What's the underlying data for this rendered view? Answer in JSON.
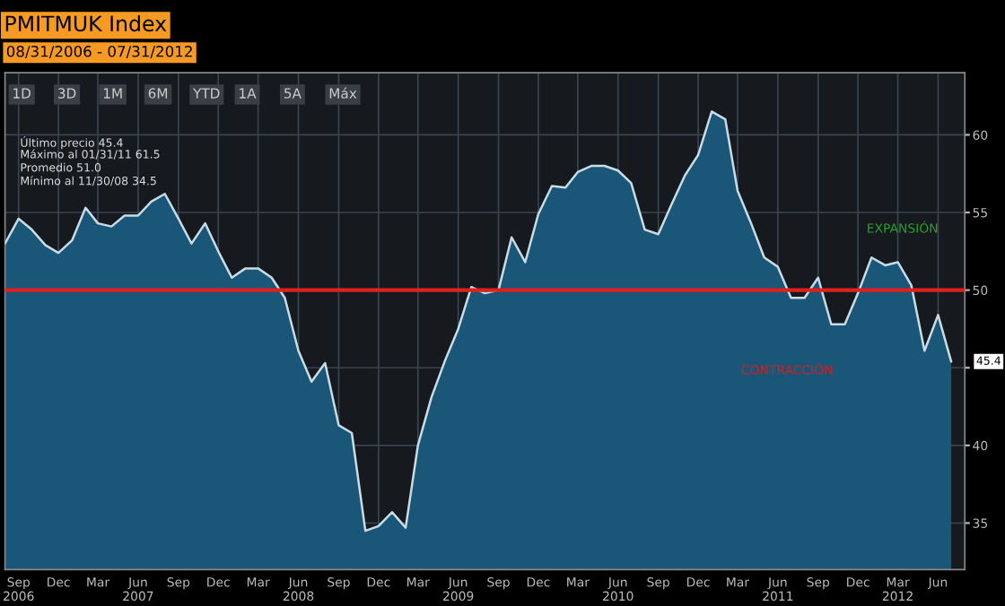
{
  "chart_data": {
    "type": "area",
    "title": "PMITMUK Index",
    "subtitle": "08/31/2006 - 07/31/2012",
    "x": [
      "2006-08",
      "2006-09",
      "2006-10",
      "2006-11",
      "2006-12",
      "2007-01",
      "2007-02",
      "2007-03",
      "2007-04",
      "2007-05",
      "2007-06",
      "2007-07",
      "2007-08",
      "2007-09",
      "2007-10",
      "2007-11",
      "2007-12",
      "2008-01",
      "2008-02",
      "2008-03",
      "2008-04",
      "2008-05",
      "2008-06",
      "2008-07",
      "2008-08",
      "2008-09",
      "2008-10",
      "2008-11",
      "2008-12",
      "2009-01",
      "2009-02",
      "2009-03",
      "2009-04",
      "2009-05",
      "2009-06",
      "2009-07",
      "2009-08",
      "2009-09",
      "2009-10",
      "2009-11",
      "2009-12",
      "2010-01",
      "2010-02",
      "2010-03",
      "2010-04",
      "2010-05",
      "2010-06",
      "2010-07",
      "2010-08",
      "2010-09",
      "2010-10",
      "2010-11",
      "2010-12",
      "2011-01",
      "2011-02",
      "2011-03",
      "2011-04",
      "2011-05",
      "2011-06",
      "2011-07",
      "2011-08",
      "2011-09",
      "2011-10",
      "2011-11",
      "2011-12",
      "2012-01",
      "2012-02",
      "2012-03",
      "2012-04",
      "2012-05",
      "2012-06",
      "2012-07"
    ],
    "series": [
      {
        "color": "#c9dce6",
        "values": [
          53.0,
          54.6,
          53.9,
          52.9,
          52.4,
          53.2,
          55.3,
          54.3,
          54.1,
          54.8,
          54.8,
          55.7,
          56.2,
          54.6,
          53.0,
          54.3,
          52.5,
          50.8,
          51.4,
          51.4,
          50.8,
          49.5,
          46.1,
          44.1,
          45.3,
          41.3,
          40.8,
          34.5,
          34.8,
          35.7,
          34.7,
          40.0,
          43.1,
          45.4,
          47.5,
          50.2,
          49.8,
          50.0,
          53.4,
          51.8,
          54.9,
          56.7,
          56.6,
          57.6,
          58.0,
          58.0,
          57.7,
          56.9,
          53.9,
          53.6,
          55.5,
          57.4,
          58.7,
          61.5,
          61.0,
          56.4,
          54.3,
          52.1,
          51.5,
          49.5,
          49.5,
          50.8,
          47.8,
          47.8,
          49.8,
          52.1,
          51.6,
          51.8,
          50.3,
          46.1,
          48.4,
          45.4
        ]
      }
    ],
    "xlim": [
      "2006-08",
      "2012-08"
    ],
    "xticks": [
      {
        "value": "2006-09",
        "label": "Sep\n2006"
      },
      {
        "value": "2006-12",
        "label": "Dec"
      },
      {
        "value": "2007-03",
        "label": "Mar"
      },
      {
        "value": "2007-06",
        "label": "Jun\n2007"
      },
      {
        "value": "2007-09",
        "label": "Sep"
      },
      {
        "value": "2007-12",
        "label": "Dec"
      },
      {
        "value": "2008-03",
        "label": "Mar"
      },
      {
        "value": "2008-06",
        "label": "Jun\n2008"
      },
      {
        "value": "2008-09",
        "label": "Sep"
      },
      {
        "value": "2008-12",
        "label": "Dec"
      },
      {
        "value": "2009-03",
        "label": "Mar"
      },
      {
        "value": "2009-06",
        "label": "Jun\n2009"
      },
      {
        "value": "2009-09",
        "label": "Sep"
      },
      {
        "value": "2009-12",
        "label": "Dec"
      },
      {
        "value": "2010-03",
        "label": "Mar"
      },
      {
        "value": "2010-06",
        "label": "Jun\n2010"
      },
      {
        "value": "2010-09",
        "label": "Sep"
      },
      {
        "value": "2010-12",
        "label": "Dec"
      },
      {
        "value": "2011-03",
        "label": "Mar"
      },
      {
        "value": "2011-06",
        "label": "Jun\n2011"
      },
      {
        "value": "2011-09",
        "label": "Sep"
      },
      {
        "value": "2011-12",
        "label": "Dec"
      },
      {
        "value": "2012-03",
        "label": "Mar\n2012"
      },
      {
        "value": "2012-06",
        "label": "Jun"
      }
    ],
    "ylim": [
      32,
      64
    ],
    "yticks": [
      35,
      40,
      {
        "value": 45,
        "label": null
      },
      50,
      55,
      60
    ],
    "grid": true,
    "ref_lines": [
      {
        "axis": "y",
        "value": 50,
        "color": "#e0201c"
      }
    ],
    "annotations": [
      "1D",
      "3D",
      "1M",
      "6M",
      "YTD",
      "1A",
      "5A",
      "Máx",
      "Último precio 45.4",
      "Máximo al 01/31/11 61.5",
      "Promedio 51.0",
      "Mínimo al 11/30/08 34.5",
      "EXPANSIÓN",
      "CONTRACCIÓN",
      {
        "text": "45.4",
        "x": "2012-07",
        "y": 45.4
      }
    ]
  }
}
